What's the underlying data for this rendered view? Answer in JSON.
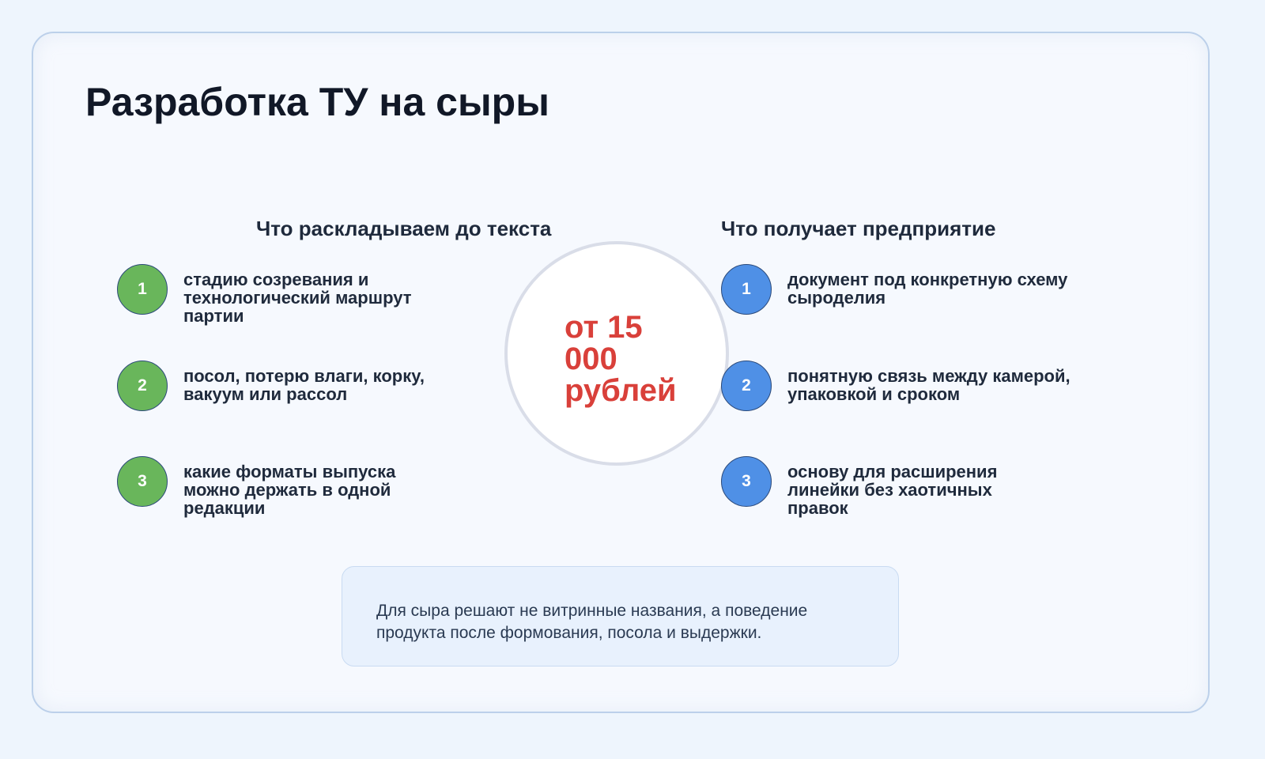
{
  "title": "Разработка ТУ на сыры",
  "left": {
    "heading": "Что раскладываем до текста",
    "items": [
      {
        "num": "1",
        "text": "стадию созревания и технологический маршрут партии"
      },
      {
        "num": "2",
        "text": "посол, потерю влаги, корку, вакуум или рассол"
      },
      {
        "num": "3",
        "text": "какие форматы выпуска можно держать в одной редакции"
      }
    ]
  },
  "right": {
    "heading": "Что получает предприятие",
    "items": [
      {
        "num": "1",
        "text": "документ под конкретную схему сыроделия"
      },
      {
        "num": "2",
        "text": "понятную связь между камерой, упаковкой и сроком"
      },
      {
        "num": "3",
        "text": "основу для расширения линейки без хаотичных правок"
      }
    ]
  },
  "price": "от 15 000 рублей",
  "note": "Для сыра решают не витринные названия, а поведение продукта после формования, посола и выдержки.",
  "colors": {
    "green": "#69b65b",
    "blue": "#4f90e6",
    "price": "#d9403a",
    "title": "#111827"
  }
}
